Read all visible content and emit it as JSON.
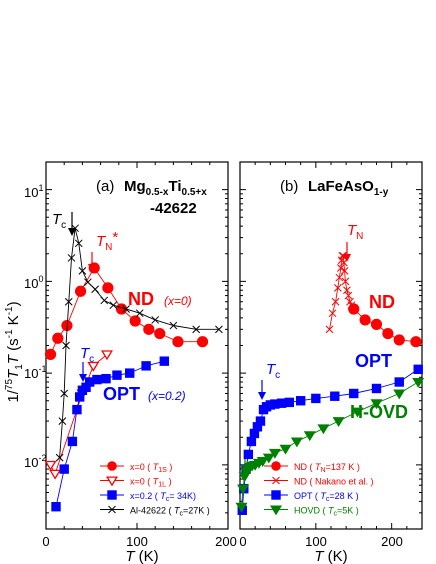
{
  "y_axis": {
    "label_prefix": "1/",
    "label_sup": "75",
    "label_main": "T",
    "label_sub": "1",
    "label_T": "T",
    "label_units": " (s",
    "label_unit_sup": "-1",
    "label_tail": " K",
    "label_tail_sup": "-1",
    "label_close": ")"
  },
  "chart_data": [
    {
      "id": "a",
      "type": "scatter",
      "title": "(a)",
      "compound": {
        "base_1": "Mg",
        "sub_1": "0.5-x",
        "base_2": "Ti",
        "sub_2": "0.5+x",
        "line_2": "-42622"
      },
      "xlabel": "T (K)",
      "ylabel": "1/75T1T (s-1 K-1)",
      "xlim": [
        0,
        200
      ],
      "ylim": [
        0.002,
        20
      ],
      "yscale": "log",
      "x_ticks": [
        "0",
        "100",
        "200"
      ],
      "y_ticks": [
        "10-2",
        "10-1",
        "100",
        "101"
      ],
      "series": [
        {
          "name": "x=0 ( T1S )",
          "marker": "circle",
          "color": "#ff0000",
          "fill": true,
          "x": [
            5,
            13,
            23,
            38,
            53,
            68,
            83,
            98,
            113,
            125,
            145,
            172
          ],
          "y": [
            0.16,
            0.24,
            0.33,
            0.78,
            1.4,
            0.85,
            0.5,
            0.37,
            0.3,
            0.27,
            0.22,
            0.22
          ]
        },
        {
          "name": "x=0 ( T1L )",
          "marker": "triangle-down",
          "color": "#ff0000",
          "fill": false,
          "x": [
            5,
            10,
            40,
            52,
            67
          ],
          "y": [
            0.01,
            0.008,
            0.06,
            0.12,
            0.16
          ]
        },
        {
          "name": "x=0.2 ( Tc=34K )",
          "marker": "square",
          "color": "#0000ff",
          "fill": true,
          "x": [
            11,
            20,
            29,
            34,
            37,
            40,
            44,
            48,
            56,
            66,
            78,
            92,
            110,
            130
          ],
          "y": [
            0.0035,
            0.009,
            0.018,
            0.04,
            0.055,
            0.065,
            0.07,
            0.08,
            0.085,
            0.087,
            0.095,
            0.1,
            0.12,
            0.135
          ]
        },
        {
          "name": "Al-42622 ( Tc=27K )",
          "marker": "x",
          "color": "#000000",
          "fill": false,
          "x": [
            15,
            18,
            20,
            22,
            25,
            28,
            32,
            36,
            40,
            46,
            54,
            64,
            74,
            88,
            103,
            120,
            140,
            165,
            190
          ],
          "y": [
            0.012,
            0.03,
            0.06,
            0.2,
            0.6,
            1.8,
            3.8,
            2.6,
            1.3,
            0.98,
            0.82,
            0.62,
            0.55,
            0.5,
            0.45,
            0.38,
            0.33,
            0.3,
            0.3
          ]
        }
      ],
      "annotations": [
        {
          "text": "Tc",
          "x": 27,
          "y": 4.5
        },
        {
          "text": "TN*",
          "x": 52,
          "y": 2.5
        },
        {
          "text": "ND",
          "sub": "(x=0)"
        },
        {
          "text": "Tc",
          "x": 40,
          "y": 0.2
        },
        {
          "text": "OPT",
          "sub": "(x=0.2)"
        }
      ],
      "legend_position": "bottom-right"
    },
    {
      "id": "b",
      "type": "scatter",
      "title": "(b)",
      "compound": {
        "base": "LaFeAsO",
        "sub": "1-y"
      },
      "xlabel": "T (K)",
      "xlim": [
        0,
        240
      ],
      "ylim": [
        0.002,
        20
      ],
      "yscale": "log",
      "x_ticks": [
        "0",
        "100",
        "200"
      ],
      "series": [
        {
          "name": "ND ( TN=137 K )",
          "marker": "circle",
          "color": "#ff0000",
          "fill": true,
          "x": [
            150,
            165,
            180,
            195,
            210,
            232
          ],
          "y": [
            0.5,
            0.38,
            0.34,
            0.27,
            0.23,
            0.22
          ]
        },
        {
          "name": "ND ( Nakano et al. )",
          "marker": "x",
          "color": "#ff0000",
          "fill": false,
          "x": [
            118,
            122,
            126,
            129,
            131,
            133,
            134,
            135,
            136,
            137,
            138,
            139,
            141,
            143,
            145,
            147
          ],
          "y": [
            0.3,
            0.45,
            0.6,
            0.85,
            1.1,
            1.4,
            1.7,
            1.9,
            1.9,
            1.6,
            1.3,
            1.0,
            0.8,
            0.7,
            0.6,
            0.55
          ]
        },
        {
          "name": "OPT ( Tc=28 K )",
          "marker": "square",
          "color": "#0000ff",
          "fill": true,
          "x": [
            3,
            5,
            8,
            11,
            15,
            19,
            23,
            27,
            31,
            35,
            40,
            46,
            55,
            65,
            80,
            100,
            125,
            150,
            180,
            210,
            235
          ],
          "y": [
            0.0032,
            0.0055,
            0.009,
            0.013,
            0.018,
            0.022,
            0.026,
            0.03,
            0.04,
            0.043,
            0.045,
            0.046,
            0.047,
            0.048,
            0.05,
            0.053,
            0.056,
            0.06,
            0.068,
            0.08,
            0.11
          ]
        },
        {
          "name": "HOVD ( Tc=5K )",
          "marker": "triangle-down",
          "color": "#008000",
          "fill": true,
          "x": [
            2,
            4,
            6,
            8,
            10,
            13,
            16,
            20,
            25,
            30,
            38,
            46,
            60,
            75,
            92,
            110,
            130,
            155,
            180,
            210,
            235
          ],
          "y": [
            0.0035,
            0.0055,
            0.0075,
            0.0085,
            0.009,
            0.0095,
            0.0098,
            0.01,
            0.0105,
            0.011,
            0.012,
            0.0135,
            0.015,
            0.018,
            0.021,
            0.025,
            0.03,
            0.038,
            0.047,
            0.06,
            0.08
          ]
        }
      ],
      "annotations": [
        {
          "text": "TN",
          "x": 137,
          "y": 4.5
        },
        {
          "text": "ND"
        },
        {
          "text": "OPT"
        },
        {
          "text": "Tc",
          "x": 28,
          "y": 0.12
        },
        {
          "text": "H-OVD"
        }
      ],
      "legend_position": "bottom-right"
    }
  ],
  "labels": {
    "panel_a_title": "(a)",
    "panel_a_compound_1": "Mg",
    "panel_a_compound_sub1": "0.5-x",
    "panel_a_compound_2": "Ti",
    "panel_a_compound_sub2": "0.5+x",
    "panel_a_compound_line2": "-42622",
    "panel_b_title": "(b)",
    "panel_b_compound": "LaFeAsO",
    "panel_b_compound_sub": "1-y",
    "a_tc": "T",
    "a_tc_sub": "c",
    "a_tn": "T",
    "a_tn_sub": "N",
    "a_tn_star": "*",
    "a_nd": "ND",
    "a_nd_sub": "(x=0)",
    "a_opt": "OPT",
    "a_opt_sub": "(x=0.2)",
    "a_tc2": "T",
    "a_tc2_sub": "c",
    "b_tn": "T",
    "b_tn_sub": "N",
    "b_nd": "ND",
    "b_opt": "OPT",
    "b_tc": "T",
    "b_tc_sub": "c",
    "b_hovd": "H-OVD",
    "xlabel_T": "T",
    "xlabel_units": " (K)",
    "tick_0": "0",
    "tick_100": "100",
    "tick_200": "200",
    "ytick_base": "10",
    "ytick_m2": "-2",
    "ytick_m1": "-1",
    "ytick_0": "0",
    "ytick_1": "1"
  },
  "legend_a": [
    {
      "pre": "x=0 ( ",
      "var": "T",
      "sub": "1S",
      "post": " )"
    },
    {
      "pre": "x=0 ( ",
      "var": "T",
      "sub": "1L",
      "post": " )"
    },
    {
      "pre": "x=0.2 ( ",
      "var": "T",
      "sub": "c",
      "post": "= 34K)"
    },
    {
      "pre": "Al-42622 ( ",
      "var": "T",
      "sub": "c",
      "post": "=27K )"
    }
  ],
  "legend_b": [
    {
      "pre": "ND ( ",
      "var": "T",
      "sub": "N",
      "post": "=137 K )"
    },
    {
      "pre": "ND ( Nakano et al. )",
      "var": "",
      "sub": "",
      "post": ""
    },
    {
      "pre": "OPT ( ",
      "var": "T",
      "sub": "c",
      "post": "=28 K )"
    },
    {
      "pre": "HOVD ( ",
      "var": "T",
      "sub": "c",
      "post": "=5K )"
    }
  ]
}
